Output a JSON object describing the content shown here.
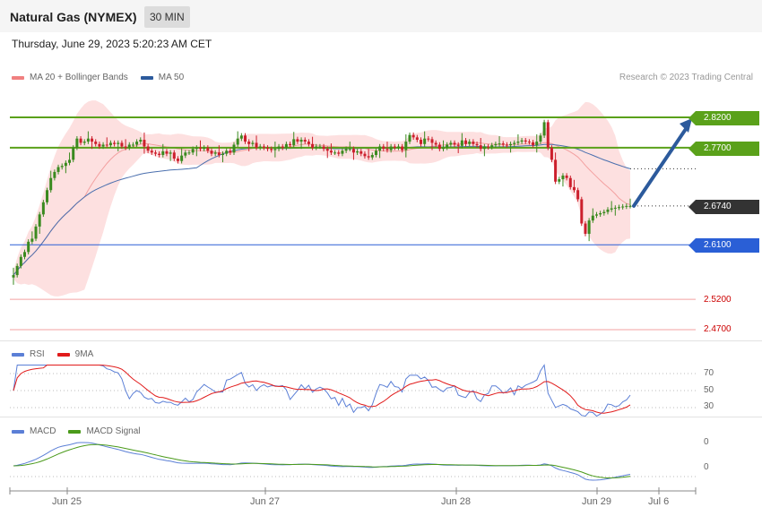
{
  "header": {
    "title": "Natural Gas (NYMEX)",
    "timeframe": "30 MIN",
    "datetime": "Thursday, June 29, 2023 5:20:23 AM CET"
  },
  "legend_main": [
    {
      "label": "MA 20 + Bollinger Bands",
      "color": "#f08080"
    },
    {
      "label": "MA 50",
      "color": "#2c5a9c"
    }
  ],
  "credit": "Research © 2023 Trading Central",
  "legend_rsi": [
    {
      "label": "RSI",
      "color": "#5b7fd6"
    },
    {
      "label": "9MA",
      "color": "#e11b1b"
    }
  ],
  "legend_macd": [
    {
      "label": "MACD",
      "color": "#5b7fd6"
    },
    {
      "label": "MACD Signal",
      "color": "#4a9a1a"
    }
  ],
  "colors": {
    "up": "#3a8a1f",
    "down": "#cc1f2c",
    "resistance": "#5aa11a",
    "support": "#2a5fd6",
    "target": "#cc3333",
    "arrow": "#2c5a9c"
  },
  "chart_data": [
    {
      "type": "candlestick",
      "title": "Natural Gas (NYMEX)",
      "timeframe": "30 MIN",
      "x_ticks": [
        "Jun 25",
        "Jun 27",
        "Jun 28",
        "Jun 29",
        "Jul 6"
      ],
      "ylim": [
        2.455,
        2.835
      ],
      "levels": [
        {
          "value": "2.8200",
          "kind": "resistance"
        },
        {
          "value": "2.7700",
          "kind": "resistance"
        },
        {
          "value": "2.6740",
          "kind": "last"
        },
        {
          "value": "2.6100",
          "kind": "support"
        },
        {
          "value": "2.5200",
          "kind": "target"
        },
        {
          "value": "2.4700",
          "kind": "target"
        }
      ],
      "forecast": {
        "from": 2.674,
        "to": 2.82,
        "direction": "up"
      },
      "close": [
        2.56,
        2.575,
        2.59,
        2.598,
        2.615,
        2.62,
        2.64,
        2.66,
        2.68,
        2.7,
        2.72,
        2.73,
        2.738,
        2.74,
        2.745,
        2.75,
        2.77,
        2.785,
        2.778,
        2.78,
        2.785,
        2.78,
        2.776,
        2.772,
        2.775,
        2.774,
        2.778,
        2.776,
        2.778,
        2.772,
        2.77,
        2.775,
        2.775,
        2.78,
        2.783,
        2.772,
        2.765,
        2.762,
        2.76,
        2.758,
        2.764,
        2.76,
        2.762,
        2.752,
        2.748,
        2.757,
        2.762,
        2.762,
        2.768,
        2.77,
        2.768,
        2.77,
        2.765,
        2.76,
        2.762,
        2.758,
        2.76,
        2.765,
        2.762,
        2.775,
        2.785,
        2.79,
        2.78,
        2.776,
        2.778,
        2.77,
        2.772,
        2.77,
        2.768,
        2.766,
        2.768,
        2.772,
        2.77,
        2.776,
        2.774,
        2.784,
        2.78,
        2.783,
        2.78,
        2.776,
        2.77,
        2.772,
        2.772,
        2.768,
        2.765,
        2.762,
        2.762,
        2.76,
        2.765,
        2.768,
        2.768,
        2.762,
        2.764,
        2.76,
        2.756,
        2.754,
        2.758,
        2.765,
        2.772,
        2.768,
        2.766,
        2.772,
        2.77,
        2.772,
        2.766,
        2.78,
        2.791,
        2.787,
        2.783,
        2.776,
        2.785,
        2.784,
        2.778,
        2.775,
        2.768,
        2.77,
        2.775,
        2.778,
        2.775,
        2.773,
        2.782,
        2.776,
        2.78,
        2.776,
        2.774,
        2.768,
        2.772,
        2.771,
        2.774,
        2.776,
        2.777,
        2.775,
        2.774,
        2.776,
        2.778,
        2.78,
        2.782,
        2.78,
        2.779,
        2.774,
        2.78,
        2.79,
        2.812,
        2.77,
        2.75,
        2.714,
        2.718,
        2.724,
        2.72,
        2.705,
        2.7,
        2.685,
        2.645,
        2.628,
        2.65,
        2.658,
        2.66,
        2.662,
        2.664,
        2.668,
        2.67,
        2.671,
        2.672,
        2.673,
        2.674,
        2.674
      ]
    },
    {
      "type": "line",
      "series": [
        {
          "name": "RSI"
        },
        {
          "name": "9MA"
        }
      ],
      "y_ticks": [
        "70",
        "50",
        "30"
      ],
      "ylim": [
        20,
        80
      ]
    },
    {
      "type": "line",
      "series": [
        {
          "name": "MACD"
        },
        {
          "name": "MACD Signal"
        }
      ],
      "y_ticks": [
        "0",
        "0"
      ]
    }
  ]
}
